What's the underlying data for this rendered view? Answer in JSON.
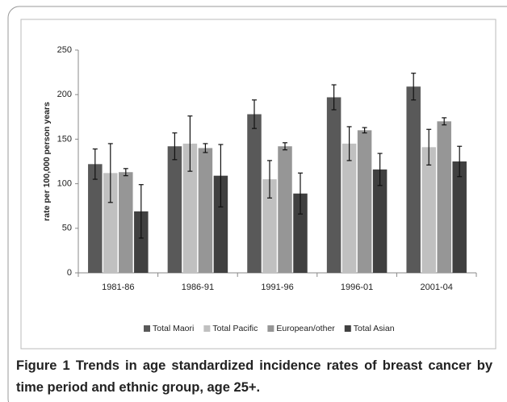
{
  "chart_data": {
    "type": "bar",
    "categories": [
      "1981-86",
      "1986-91",
      "1991-96",
      "1996-01",
      "2001-04"
    ],
    "y_label": "rate per 100,000 person years",
    "ylim": [
      0,
      250
    ],
    "yticks": [
      0,
      50,
      100,
      150,
      200,
      250
    ],
    "series": [
      {
        "name": "Total Maori",
        "color": "#595959",
        "values": [
          122,
          142,
          178,
          197,
          209
        ],
        "errors": [
          17,
          15,
          16,
          14,
          15
        ]
      },
      {
        "name": "Total Pacific",
        "color": "#c0c0c0",
        "values": [
          112,
          145,
          105,
          145,
          141
        ],
        "errors": [
          33,
          31,
          21,
          19,
          20
        ]
      },
      {
        "name": "European/other",
        "color": "#969696",
        "values": [
          113,
          140,
          142,
          160,
          170
        ],
        "errors": [
          4,
          5,
          4,
          3,
          4
        ]
      },
      {
        "name": "Total Asian",
        "color": "#404040",
        "values": [
          69,
          109,
          89,
          116,
          125
        ],
        "errors": [
          30,
          35,
          23,
          18,
          17
        ]
      }
    ]
  },
  "caption": {
    "label": "Figure 1",
    "text": "Trends in age standardized incidence rates of breast cancer by time period and ethnic group, age 25+."
  }
}
